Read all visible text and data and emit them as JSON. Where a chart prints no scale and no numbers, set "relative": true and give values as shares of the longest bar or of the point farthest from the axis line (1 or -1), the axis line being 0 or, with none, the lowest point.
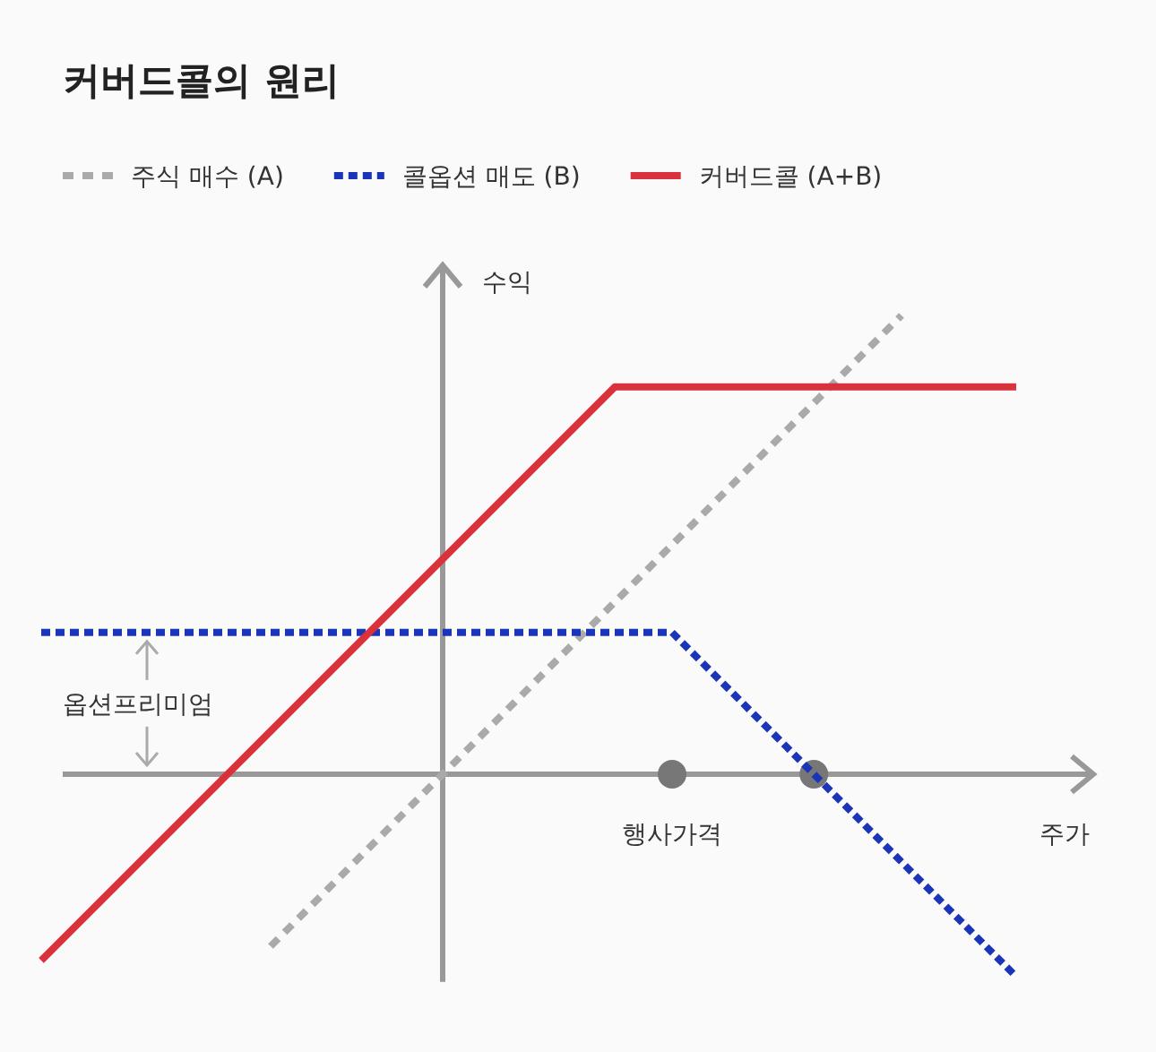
{
  "chart_data": {
    "type": "line",
    "title": "커버드콜의 원리",
    "xlabel": "주가",
    "ylabel": "수익",
    "relative": true,
    "legend": "top left",
    "marker": "none",
    "categories": [
      null,
      null,
      null,
      null,
      null,
      null,
      null,
      null,
      null,
      null,
      null,
      null,
      null,
      null,
      null,
      null,
      null,
      null
    ],
    "annotations": [
      "행사가격",
      "옵션프리미엄"
    ],
    "series": [
      {
        "name": "주식 매수 (A)",
        "color": "#aaaaaa",
        "line_style": "dashed",
        "values": [
          null,
          null,
          null,
          null,
          -0.375,
          -0.25,
          -0.125,
          0,
          0.125,
          0.25,
          0.375,
          0.5,
          0.625,
          0.75,
          0.875,
          1.0,
          null,
          null
        ]
      },
      {
        "name": "콜옵션 매도 (B)",
        "color": "#1a35b8",
        "line_style": "dotted",
        "values": [
          0.309,
          0.309,
          0.309,
          0.309,
          0.309,
          0.309,
          0.309,
          0.309,
          0.309,
          0.309,
          0.309,
          0.309,
          0.184,
          0.059,
          -0.066,
          -0.191,
          -0.316,
          -0.441
        ]
      },
      {
        "name": "커버드콜 (A+B)",
        "color": "#d9323c",
        "line_style": "solid",
        "values": [
          -0.406,
          -0.281,
          -0.156,
          -0.031,
          0.094,
          0.219,
          0.344,
          0.469,
          0.594,
          0.719,
          0.844,
          0.844,
          0.844,
          0.844,
          0.844,
          0.844,
          0.844,
          0.844
        ]
      }
    ]
  }
}
